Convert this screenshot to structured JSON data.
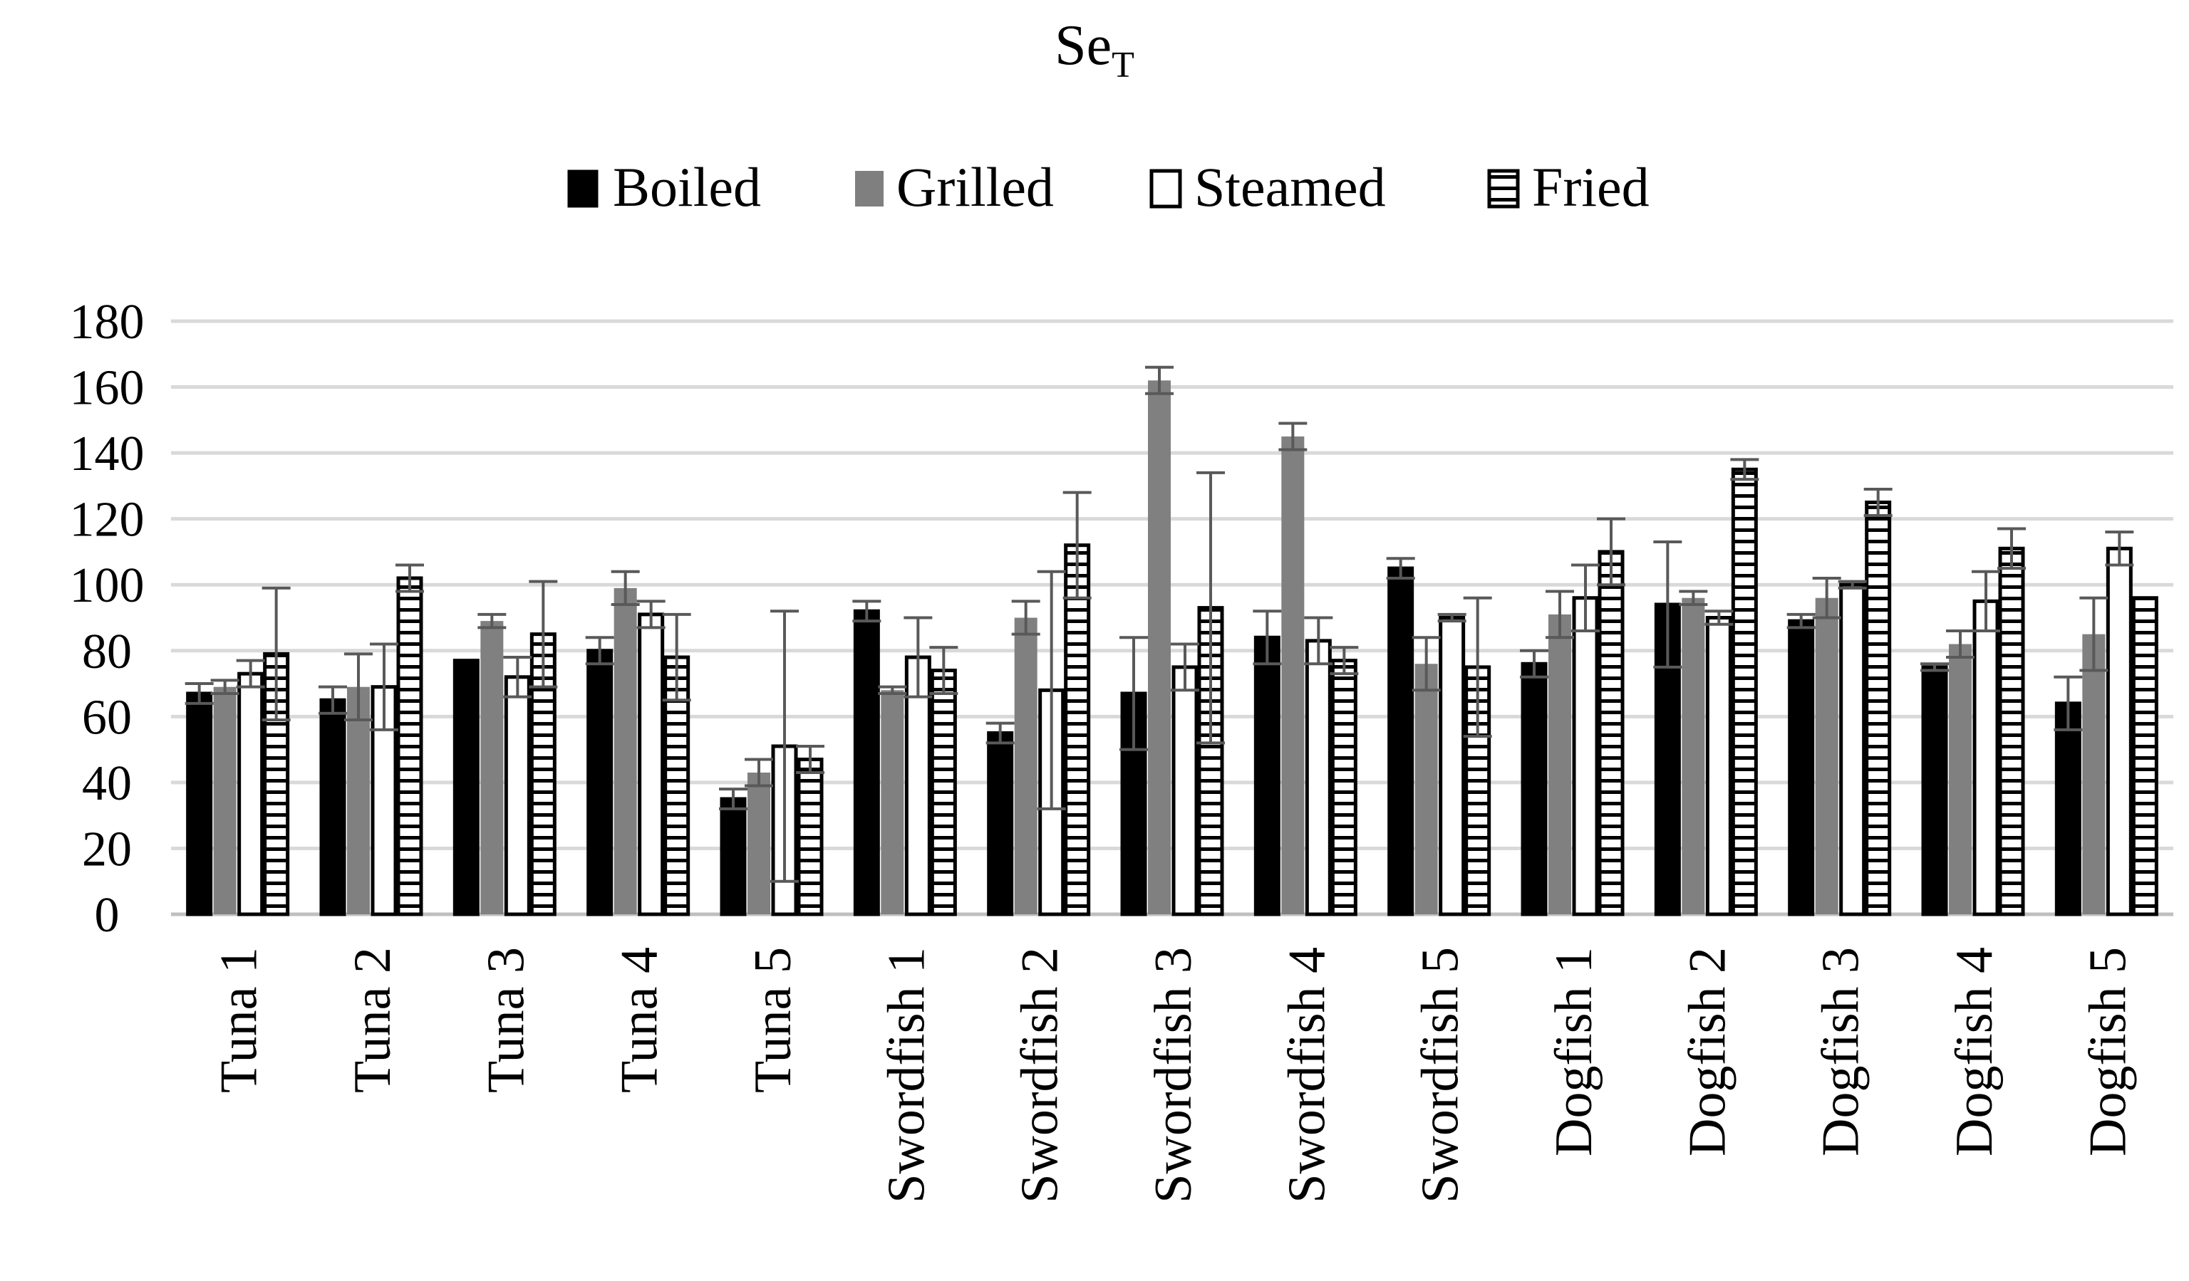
{
  "chart_data": {
    "type": "bar",
    "title": "Se",
    "title_subscript": "T",
    "xlabel": "",
    "ylabel": "",
    "ylim": [
      0,
      180
    ],
    "yticks": [
      0,
      20,
      40,
      60,
      80,
      100,
      120,
      140,
      160,
      180
    ],
    "grid": true,
    "legend_position": "top",
    "categories": [
      "Tuna 1",
      "Tuna 2",
      "Tuna 3",
      "Tuna 4",
      "Tuna 5",
      "Swordfish 1",
      "Swordfish 2",
      "Swordfish 3",
      "Swordfish 4",
      "Swordfish 5",
      "Dogfish 1",
      "Dogfish 2",
      "Dogfish 3",
      "Dogfish 4",
      "Dogfish 5"
    ],
    "series": [
      {
        "name": "Boiled",
        "fill": "solid-black",
        "values": [
          67,
          65,
          77,
          80,
          35,
          92,
          55,
          67,
          84,
          105,
          76,
          94,
          89,
          75,
          64
        ],
        "errors": [
          3,
          4,
          0,
          4,
          3,
          3,
          3,
          17,
          8,
          3,
          4,
          19,
          2,
          1,
          8
        ]
      },
      {
        "name": "Grilled",
        "fill": "solid-gray",
        "values": [
          69,
          69,
          89,
          99,
          43,
          68,
          90,
          162,
          145,
          76,
          91,
          96,
          96,
          82,
          85
        ],
        "errors": [
          2,
          10,
          2,
          5,
          4,
          1,
          5,
          4,
          4,
          8,
          7,
          2,
          6,
          4,
          11
        ]
      },
      {
        "name": "Steamed",
        "fill": "white",
        "values": [
          73,
          69,
          72,
          91,
          51,
          78,
          68,
          75,
          83,
          90,
          96,
          90,
          100,
          95,
          111
        ],
        "errors": [
          4,
          13,
          6,
          4,
          41,
          12,
          36,
          7,
          7,
          1,
          10,
          2,
          1,
          9,
          5
        ]
      },
      {
        "name": "Fried",
        "fill": "horizontal-stripes",
        "values": [
          79,
          102,
          85,
          78,
          47,
          74,
          112,
          93,
          77,
          75,
          110,
          135,
          125,
          111,
          96
        ],
        "errors": [
          20,
          4,
          16,
          13,
          4,
          7,
          16,
          41,
          4,
          21,
          10,
          3,
          4,
          6,
          0
        ]
      }
    ]
  }
}
